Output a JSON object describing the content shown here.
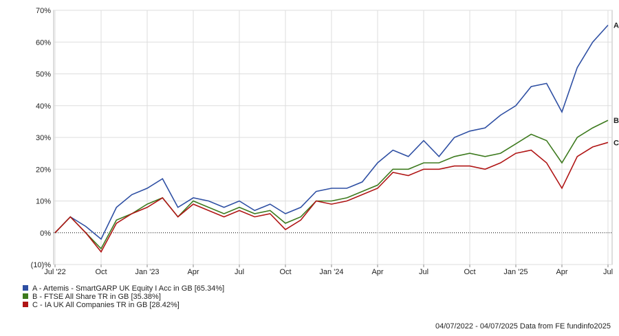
{
  "chart_data": {
    "type": "line",
    "footer": "04/07/2022 - 04/07/2025 Data from FE fundinfo2025",
    "x": [
      "2022-07",
      "2022-08",
      "2022-09",
      "2022-10",
      "2022-11",
      "2022-12",
      "2023-01",
      "2023-02",
      "2023-03",
      "2023-04",
      "2023-05",
      "2023-06",
      "2023-07",
      "2023-08",
      "2023-09",
      "2023-10",
      "2023-11",
      "2023-12",
      "2024-01",
      "2024-02",
      "2024-03",
      "2024-04",
      "2024-05",
      "2024-06",
      "2024-07",
      "2024-08",
      "2024-09",
      "2024-10",
      "2024-11",
      "2024-12",
      "2025-01",
      "2025-02",
      "2025-03",
      "2025-04",
      "2025-05",
      "2025-06",
      "2025-07"
    ],
    "xlim": [
      "2022-07",
      "2025-07"
    ],
    "xticks": [
      {
        "value": "2022-07",
        "label": "Jul '22"
      },
      {
        "value": "2022-10",
        "label": "Oct"
      },
      {
        "value": "2023-01",
        "label": "Jan '23"
      },
      {
        "value": "2023-04",
        "label": "Apr"
      },
      {
        "value": "2023-07",
        "label": "Jul"
      },
      {
        "value": "2023-10",
        "label": "Oct"
      },
      {
        "value": "2024-01",
        "label": "Jan '24"
      },
      {
        "value": "2024-04",
        "label": "Apr"
      },
      {
        "value": "2024-07",
        "label": "Jul"
      },
      {
        "value": "2024-10",
        "label": "Oct"
      },
      {
        "value": "2025-01",
        "label": "Jan '25"
      },
      {
        "value": "2025-04",
        "label": "Apr"
      },
      {
        "value": "2025-07",
        "label": "Jul"
      }
    ],
    "ylim": [
      -10,
      70
    ],
    "yticks": [
      {
        "value": -10,
        "label": "(10)%"
      },
      {
        "value": 0,
        "label": "0%"
      },
      {
        "value": 10,
        "label": "10%"
      },
      {
        "value": 20,
        "label": "20%"
      },
      {
        "value": 30,
        "label": "30%"
      },
      {
        "value": 40,
        "label": "40%"
      },
      {
        "value": 50,
        "label": "50%"
      },
      {
        "value": 60,
        "label": "60%"
      },
      {
        "value": 70,
        "label": "70%"
      }
    ],
    "grid": true,
    "series": [
      {
        "name": "A - Artemis - SmartGARP UK Equity I Acc in GB [65.34%]",
        "label": "A",
        "color": "#2e4fa3",
        "values": [
          0,
          5,
          2,
          -2,
          8,
          12,
          14,
          17,
          8,
          11,
          10,
          8,
          10,
          7,
          9,
          6,
          8,
          13,
          14,
          14,
          16,
          22,
          26,
          24,
          29,
          24,
          30,
          32,
          33,
          37,
          40,
          46,
          47,
          38,
          52,
          60,
          65.34
        ]
      },
      {
        "name": "B - FTSE All Share TR in GB [35.38%]",
        "label": "B",
        "color": "#3d7a1e",
        "values": [
          0,
          5,
          0,
          -5,
          4,
          6,
          9,
          11,
          5,
          10,
          8,
          6,
          8,
          6,
          7,
          3,
          5,
          10,
          10,
          11,
          13,
          15,
          20,
          20,
          22,
          22,
          24,
          25,
          24,
          25,
          28,
          31,
          29,
          22,
          30,
          33,
          35.38
        ]
      },
      {
        "name": "C - IA UK All Companies TR in GB [28.42%]",
        "label": "C",
        "color": "#b01515",
        "values": [
          0,
          5,
          0,
          -6,
          3,
          6,
          8,
          11,
          5,
          9,
          7,
          5,
          7,
          5,
          6,
          1,
          4,
          10,
          9,
          10,
          12,
          14,
          19,
          18,
          20,
          20,
          21,
          21,
          20,
          22,
          25,
          26,
          22,
          14,
          24,
          27,
          28.42
        ]
      }
    ]
  }
}
